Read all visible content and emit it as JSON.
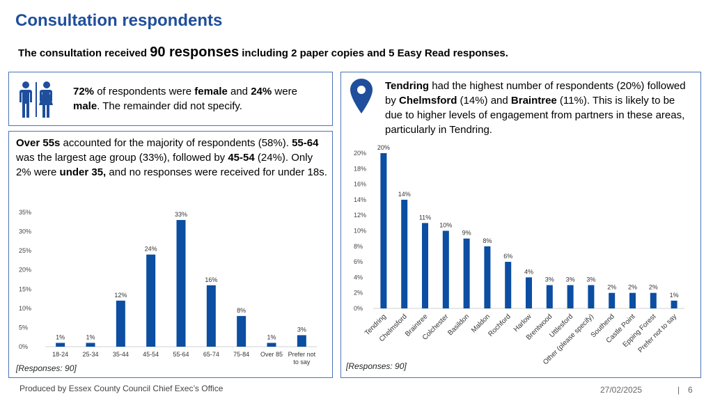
{
  "header": {
    "title": "Consultation respondents"
  },
  "intro": {
    "prefix": "The consultation received ",
    "highlight": "90 responses",
    "suffix": " including 2 paper copies and 5 Easy Read responses."
  },
  "gender_panel": {
    "icon": "female-male-toilet-icon",
    "parts": [
      {
        "text": "72%",
        "bold": true
      },
      {
        "text": " of respondents were ",
        "bold": false
      },
      {
        "text": "female",
        "bold": true
      },
      {
        "text": " and ",
        "bold": false
      },
      {
        "text": "24%",
        "bold": true
      },
      {
        "text": " were ",
        "bold": false
      },
      {
        "text": "male",
        "bold": true
      },
      {
        "text": ". The remainder did not specify.",
        "bold": false
      }
    ]
  },
  "age_panel": {
    "parts": [
      {
        "text": "Over 55s",
        "bold": true
      },
      {
        "text": " accounted for the majority of respondents (58%). ",
        "bold": false
      },
      {
        "text": "55-64",
        "bold": true
      },
      {
        "text": " was the largest age group (33%), followed by ",
        "bold": false
      },
      {
        "text": "45-54",
        "bold": true
      },
      {
        "text": " (24%). Only 2% were ",
        "bold": false
      },
      {
        "text": "under 35,",
        "bold": true
      },
      {
        "text": " and no responses were received for under 18s.",
        "bold": false
      }
    ],
    "responses_note": "[Responses: 90]"
  },
  "district_panel": {
    "icon": "location-pin-icon",
    "parts": [
      {
        "text": "Tendring",
        "bold": true
      },
      {
        "text": " had the highest number of respondents (20%) followed by ",
        "bold": false
      },
      {
        "text": "Chelmsford",
        "bold": true
      },
      {
        "text": " (14%) and ",
        "bold": false
      },
      {
        "text": "Braintree",
        "bold": true
      },
      {
        "text": " (11%). This is likely to be due to higher levels of engagement from partners in these areas, particularly in Tendring.",
        "bold": false
      }
    ],
    "responses_note": "[Responses: 90]"
  },
  "chart_data": [
    {
      "type": "bar",
      "categories": [
        "18-24",
        "25-34",
        "35-44",
        "45-54",
        "55-64",
        "65-74",
        "75-84",
        "Over 85",
        "Prefer not to say"
      ],
      "values": [
        1,
        1,
        12,
        24,
        33,
        16,
        8,
        1,
        3
      ],
      "data_labels": [
        "1%",
        "1%",
        "12%",
        "24%",
        "33%",
        "16%",
        "8%",
        "1%",
        "3%"
      ],
      "yticks": [
        "0%",
        "5%",
        "10%",
        "15%",
        "20%",
        "25%",
        "30%",
        "35%"
      ],
      "ylim": [
        0,
        35
      ],
      "grid": false,
      "color": "#0b4ea2"
    },
    {
      "type": "bar",
      "categories": [
        "Tendring",
        "Chelmsford",
        "Braintree",
        "Colchester",
        "Basildon",
        "Maldon",
        "Rochford",
        "Harlow",
        "Brentwood",
        "Uttlesford",
        "Other (please specify)",
        "Southend",
        "Castle Point",
        "Epping Forest",
        "Prefer not to say"
      ],
      "values": [
        20,
        14,
        11,
        10,
        9,
        8,
        6,
        4,
        3,
        3,
        3,
        2,
        2,
        2,
        1
      ],
      "data_labels": [
        "20%",
        "14%",
        "11%",
        "10%",
        "9%",
        "8%",
        "6%",
        "4%",
        "3%",
        "3%",
        "3%",
        "2%",
        "2%",
        "2%",
        "1%"
      ],
      "yticks": [
        "0%",
        "2%",
        "4%",
        "6%",
        "8%",
        "10%",
        "12%",
        "14%",
        "16%",
        "18%",
        "20%"
      ],
      "ylim": [
        0,
        20
      ],
      "grid": false,
      "color": "#0b4ea2"
    }
  ],
  "footer": {
    "producer": "Produced by Essex County Council Chief Exec’s Office",
    "date": "27/02/2025",
    "separator": "|",
    "page": "6"
  }
}
